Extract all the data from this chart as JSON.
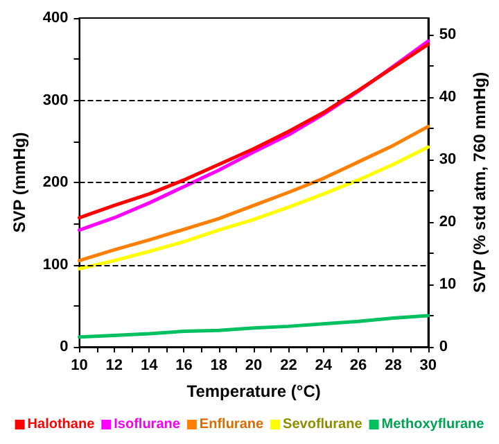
{
  "chart_data": {
    "type": "line",
    "xlabel": "Temperature (°C)",
    "ylabel": "SVP (mmHg)",
    "y2label": "SVP (% std atm, 760 mmHg)",
    "x": [
      10,
      12,
      14,
      16,
      18,
      20,
      22,
      24,
      26,
      28,
      30
    ],
    "series": [
      {
        "name": "Halothane",
        "color": "#ff0000",
        "values": [
          157,
          172,
          186,
          203,
          222,
          241,
          262,
          285,
          312,
          340,
          368
        ]
      },
      {
        "name": "Isoflurane",
        "color": "#ff00ff",
        "values": [
          142,
          157,
          175,
          195,
          215,
          237,
          258,
          283,
          311,
          341,
          372
        ]
      },
      {
        "name": "Enflurane",
        "color": "#ff8000",
        "values": [
          105,
          118,
          130,
          143,
          156,
          172,
          188,
          205,
          225,
          245,
          268
        ]
      },
      {
        "name": "Sevoflurane",
        "color": "#ffff00",
        "values": [
          95,
          105,
          116,
          128,
          142,
          155,
          170,
          186,
          203,
          222,
          243
        ]
      },
      {
        "name": "Methoxyflurane",
        "color": "#00c060",
        "values": [
          12,
          14,
          16,
          19,
          20,
          23,
          25,
          28,
          31,
          35,
          38
        ]
      }
    ],
    "xlim": [
      10,
      30
    ],
    "xticks": [
      10,
      {
        "value": 11,
        "label": null
      },
      12,
      {
        "value": 13,
        "label": null
      },
      14,
      {
        "value": 15,
        "label": null
      },
      16,
      {
        "value": 17,
        "label": null
      },
      18,
      {
        "value": 19,
        "label": null
      },
      20,
      {
        "value": 21,
        "label": null
      },
      22,
      {
        "value": 23,
        "label": null
      },
      24,
      {
        "value": 25,
        "label": null
      },
      26,
      {
        "value": 27,
        "label": null
      },
      28,
      {
        "value": 29,
        "label": null
      },
      30
    ],
    "ylim": [
      0,
      400
    ],
    "yticks": [
      0,
      {
        "value": 50,
        "label": null
      },
      100,
      {
        "value": 150,
        "label": null
      },
      200,
      {
        "value": 250,
        "label": null
      },
      300,
      {
        "value": 350,
        "label": null
      },
      400
    ],
    "y2lim": [
      0,
      52.63
    ],
    "y2ticks": [
      0,
      {
        "value": 5,
        "label": null
      },
      10,
      {
        "value": 15,
        "label": null
      },
      20,
      {
        "value": 25,
        "label": null
      },
      30,
      {
        "value": 35,
        "label": null
      },
      40,
      {
        "value": 45,
        "label": null
      },
      50
    ],
    "grid": "y",
    "legend": "bottom",
    "marker": "none",
    "line_style": "solid"
  }
}
